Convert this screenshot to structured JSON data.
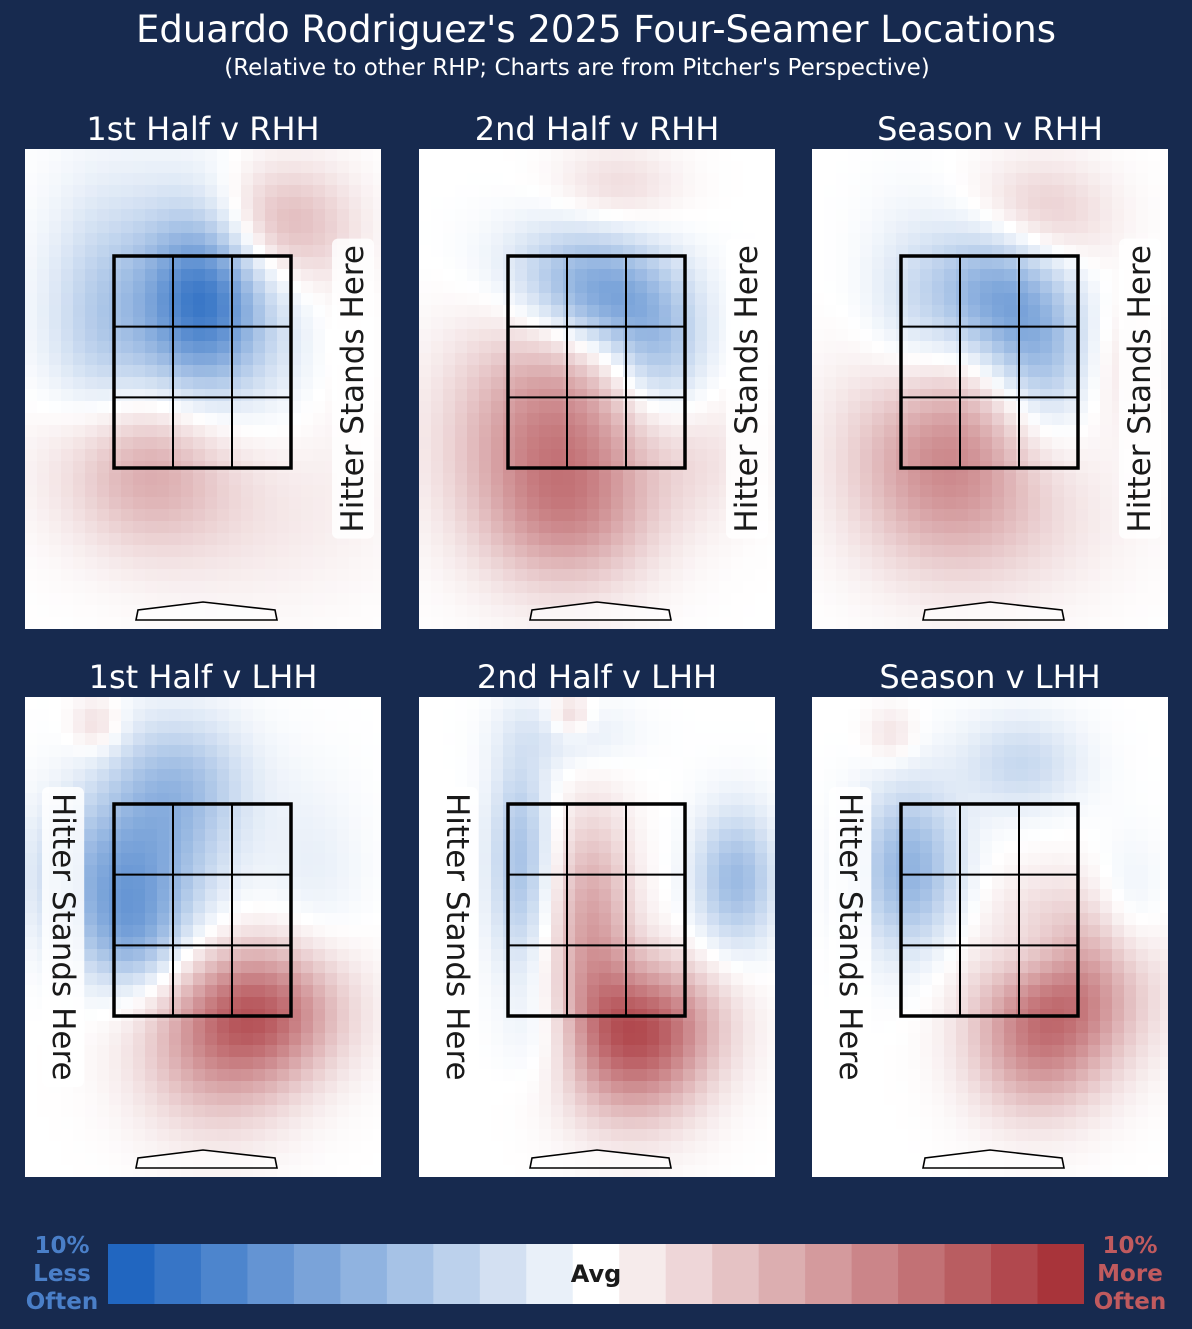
{
  "title": "Eduardo Rodriguez's 2025 Four-Seamer Locations",
  "subtitle": "(Relative to other RHP; Charts are from Pitcher's Perspective)",
  "stands_label": "Hitter Stands Here",
  "colors": {
    "background": "#172a4f",
    "less_often": "#2166c0",
    "more_often": "#a8343a",
    "less_label": "#4a7fc8",
    "more_label": "#c05a5e"
  },
  "chart_data": [
    {
      "type": "heatmap",
      "title": "1st Half v RHH",
      "hitter_side": "R",
      "blobs": [
        [
          0.5,
          0.7,
          0.11,
          0.12,
          -0.55
        ],
        [
          0.45,
          0.64,
          0.2,
          0.18,
          -0.4
        ],
        [
          0.2,
          0.62,
          0.1,
          0.2,
          -0.18
        ],
        [
          0.33,
          0.35,
          0.17,
          0.12,
          0.45
        ],
        [
          0.7,
          0.84,
          0.14,
          0.09,
          0.42
        ],
        [
          0.62,
          0.25,
          0.26,
          0.14,
          0.12
        ],
        [
          0.88,
          0.6,
          0.07,
          0.18,
          0.05
        ]
      ]
    },
    {
      "type": "heatmap",
      "title": "2nd Half v RHH",
      "hitter_side": "R",
      "blobs": [
        [
          0.52,
          0.68,
          0.14,
          0.08,
          -0.5
        ],
        [
          0.66,
          0.56,
          0.1,
          0.1,
          -0.4
        ],
        [
          0.42,
          0.76,
          0.16,
          0.08,
          -0.25
        ],
        [
          0.38,
          0.4,
          0.2,
          0.17,
          0.62
        ],
        [
          0.42,
          0.22,
          0.16,
          0.1,
          0.25
        ],
        [
          0.55,
          0.92,
          0.12,
          0.06,
          0.18
        ],
        [
          0.8,
          0.36,
          0.12,
          0.1,
          0.1
        ]
      ]
    },
    {
      "type": "heatmap",
      "title": "Season v RHH",
      "hitter_side": "R",
      "blobs": [
        [
          0.5,
          0.7,
          0.12,
          0.11,
          -0.55
        ],
        [
          0.64,
          0.57,
          0.1,
          0.12,
          -0.4
        ],
        [
          0.28,
          0.64,
          0.1,
          0.15,
          -0.2
        ],
        [
          0.36,
          0.38,
          0.18,
          0.15,
          0.55
        ],
        [
          0.62,
          0.86,
          0.14,
          0.08,
          0.3
        ],
        [
          0.52,
          0.22,
          0.24,
          0.12,
          0.15
        ],
        [
          0.85,
          0.55,
          0.08,
          0.1,
          0.12
        ]
      ]
    },
    {
      "type": "heatmap",
      "title": "1st Half v LHH",
      "hitter_side": "L",
      "blobs": [
        [
          0.28,
          0.63,
          0.16,
          0.11,
          -0.55
        ],
        [
          0.42,
          0.82,
          0.14,
          0.1,
          -0.4
        ],
        [
          0.3,
          0.49,
          0.1,
          0.08,
          -0.35
        ],
        [
          0.66,
          0.35,
          0.16,
          0.1,
          0.65
        ],
        [
          0.53,
          0.25,
          0.16,
          0.12,
          0.35
        ],
        [
          0.2,
          0.94,
          0.05,
          0.04,
          0.2
        ],
        [
          0.8,
          0.62,
          0.1,
          0.15,
          -0.1
        ]
      ]
    },
    {
      "type": "heatmap",
      "title": "2nd Half v LHH",
      "hitter_side": "L",
      "blobs": [
        [
          0.48,
          0.53,
          0.08,
          0.16,
          0.45
        ],
        [
          0.63,
          0.33,
          0.15,
          0.09,
          0.6
        ],
        [
          0.6,
          0.22,
          0.14,
          0.1,
          0.4
        ],
        [
          0.28,
          0.66,
          0.06,
          0.16,
          -0.4
        ],
        [
          0.88,
          0.62,
          0.08,
          0.1,
          -0.45
        ],
        [
          0.42,
          0.92,
          0.12,
          0.05,
          -0.15
        ],
        [
          0.36,
          0.3,
          0.08,
          0.08,
          -0.15
        ],
        [
          0.42,
          0.96,
          0.04,
          0.03,
          0.25
        ]
      ]
    },
    {
      "type": "heatmap",
      "title": "Season v LHH",
      "hitter_side": "L",
      "blobs": [
        [
          0.27,
          0.64,
          0.1,
          0.12,
          -0.5
        ],
        [
          0.58,
          0.86,
          0.12,
          0.07,
          -0.25
        ],
        [
          0.62,
          0.46,
          0.1,
          0.06,
          -0.25
        ],
        [
          0.7,
          0.4,
          0.16,
          0.12,
          0.65
        ],
        [
          0.62,
          0.25,
          0.13,
          0.1,
          0.35
        ],
        [
          0.22,
          0.92,
          0.05,
          0.04,
          0.15
        ],
        [
          0.88,
          0.55,
          0.07,
          0.1,
          -0.15
        ]
      ]
    }
  ],
  "legend": {
    "center_label": "Avg",
    "left_pct": "10%",
    "left_word1": "Less",
    "left_word2": "Often",
    "right_pct": "10%",
    "right_word1": "More",
    "right_word2": "Often",
    "bins": 21,
    "range": [
      -10,
      10
    ]
  }
}
